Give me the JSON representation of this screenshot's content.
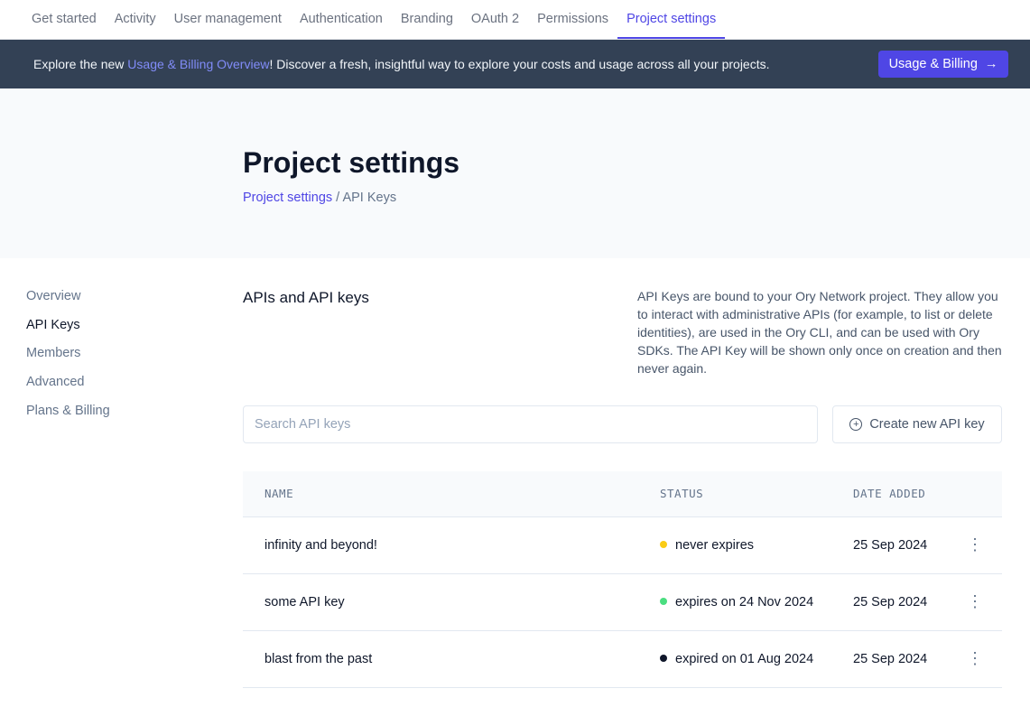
{
  "topnav": {
    "tabs": [
      {
        "label": "Get started"
      },
      {
        "label": "Activity"
      },
      {
        "label": "User management"
      },
      {
        "label": "Authentication"
      },
      {
        "label": "Branding"
      },
      {
        "label": "OAuth 2"
      },
      {
        "label": "Permissions"
      },
      {
        "label": "Project settings",
        "active": true
      }
    ]
  },
  "banner": {
    "prefix": "Explore the new ",
    "link": "Usage & Billing Overview",
    "suffix": "! Discover a fresh, insightful way to explore your costs and usage across all your projects.",
    "button": "Usage & Billing",
    "button_icon": "arrow-right-icon"
  },
  "header": {
    "title": "Project settings",
    "breadcrumb_link": "Project settings",
    "breadcrumb_sep": "/",
    "breadcrumb_current": "API Keys"
  },
  "sidebar": {
    "items": [
      {
        "label": "Overview"
      },
      {
        "label": "API Keys",
        "active": true
      },
      {
        "label": "Members"
      },
      {
        "label": "Advanced"
      },
      {
        "label": "Plans & Billing"
      }
    ]
  },
  "section": {
    "title": "APIs and API keys",
    "description": "API Keys are bound to your Ory Network project. They allow you to interact with administrative APIs (for example, to list or delete identities), are used in the Ory CLI, and can be used with Ory SDKs. The API Key will be shown only once on creation and then never again."
  },
  "search": {
    "placeholder": "Search API keys",
    "value": ""
  },
  "create_button": "Create new API key",
  "table": {
    "headers": [
      "NAME",
      "STATUS",
      "DATE ADDED"
    ],
    "rows": [
      {
        "name": "infinity and beyond!",
        "status": "never expires",
        "status_color": "#facc15",
        "date": "25 Sep 2024"
      },
      {
        "name": "some API key",
        "status": "expires on 24 Nov 2024",
        "status_color": "#4ade80",
        "date": "25 Sep 2024"
      },
      {
        "name": "blast from the past",
        "status": "expired on 01 Aug 2024",
        "status_color": "#0f172a",
        "date": "25 Sep 2024"
      }
    ]
  }
}
